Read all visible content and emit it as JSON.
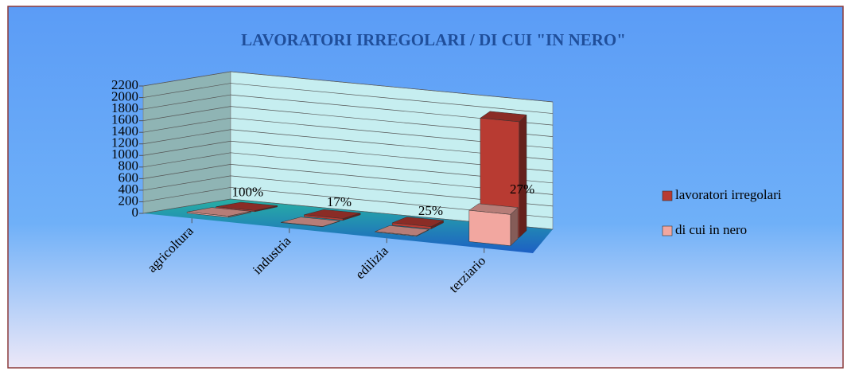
{
  "chart_data": {
    "type": "bar3d",
    "title": "LAVORATORI IRREGOLARI / DI CUI \"IN NERO\"",
    "categories": [
      "agricoltura",
      "industria",
      "edilizia",
      "terziario"
    ],
    "series": [
      {
        "name": "lavoratori irregolari",
        "color": "#b83b32",
        "values": [
          20,
          30,
          40,
          2000
        ]
      },
      {
        "name": "di cui in nero",
        "color": "#f2a7a0",
        "values": [
          20,
          5,
          10,
          540
        ]
      }
    ],
    "annotations": [
      "100%",
      "17%",
      "25%",
      "27%"
    ],
    "ylim": [
      0,
      2200
    ],
    "yticks": [
      0,
      200,
      400,
      600,
      800,
      1000,
      1200,
      1400,
      1600,
      1800,
      2000,
      2200
    ],
    "grid": true,
    "legend": "right"
  }
}
